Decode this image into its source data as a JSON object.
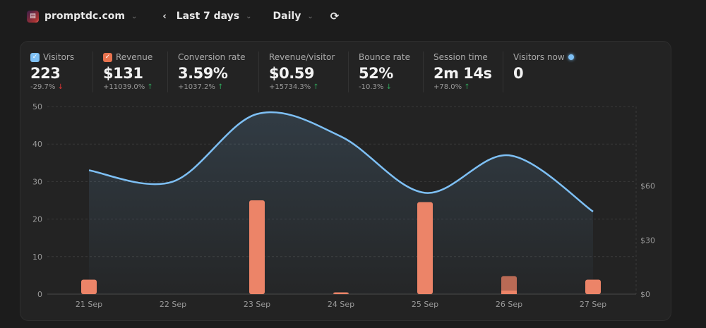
{
  "header": {
    "site": "promptdc.com",
    "range": "Last 7 days",
    "interval": "Daily"
  },
  "metrics": [
    {
      "label": "Visitors",
      "value": "223",
      "change": "-29.7%",
      "dir": "down",
      "good": false,
      "checkbox": true,
      "color": "#7ec0f5"
    },
    {
      "label": "Revenue",
      "value": "$131",
      "change": "+11039.0%",
      "dir": "up",
      "good": true,
      "checkbox": true,
      "color": "#e8734f"
    },
    {
      "label": "Conversion rate",
      "value": "3.59%",
      "change": "+1037.2%",
      "dir": "up",
      "good": true
    },
    {
      "label": "Revenue/visitor",
      "value": "$0.59",
      "change": "+15734.3%",
      "dir": "up",
      "good": true
    },
    {
      "label": "Bounce rate",
      "value": "52%",
      "change": "-10.3%",
      "dir": "down",
      "good": true
    },
    {
      "label": "Session time",
      "value": "2m 14s",
      "change": "+78.0%",
      "dir": "up",
      "good": true
    },
    {
      "label": "Visitors now",
      "value": "0",
      "live": true
    }
  ],
  "chart_data": {
    "type": "line+bar",
    "categories": [
      "21 Sep",
      "22 Sep",
      "23 Sep",
      "24 Sep",
      "25 Sep",
      "26 Sep",
      "27 Sep"
    ],
    "series": [
      {
        "name": "Visitors",
        "type": "line",
        "axis": "left",
        "color": "#7ec0f5",
        "values": [
          33,
          30,
          48,
          42,
          27,
          37,
          22
        ]
      },
      {
        "name": "Revenue",
        "type": "bar",
        "axis": "right",
        "color": "#ec8468",
        "values": [
          8,
          0,
          52,
          1,
          51,
          10,
          8
        ],
        "lower_part": [
          0,
          0,
          0,
          0,
          0,
          2,
          0
        ]
      }
    ],
    "left_axis": {
      "ticks": [
        0,
        10,
        20,
        30,
        40,
        50
      ],
      "range": [
        0,
        50
      ]
    },
    "right_axis": {
      "ticks": [
        "$0",
        "$30",
        "$60"
      ],
      "tick_values": [
        0,
        30,
        60
      ],
      "range": [
        0,
        104
      ]
    }
  }
}
